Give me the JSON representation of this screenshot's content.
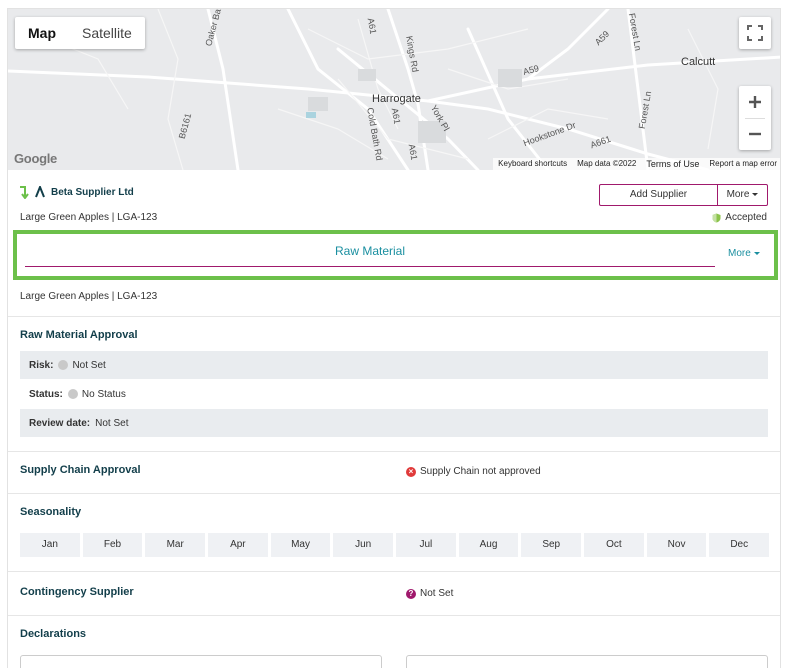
{
  "map": {
    "type_map": "Map",
    "type_satellite": "Satellite",
    "labels": {
      "harrogate": "Harrogate",
      "calcutt": "Calcutt",
      "a61_top": "A61",
      "a59": "A59",
      "a59b": "A59",
      "forest_ln": "Forest Ln",
      "oakdale": "Oaker Bar",
      "kings_rd": "Kings Rd",
      "b6161": "B6161",
      "cold_bath": "Cold Bath Rd",
      "york_pl": "York Pl",
      "a61_mid": "A61",
      "a61_low": "A61",
      "hookstone": "Hookstone Dr",
      "a661": "A661",
      "forest_ln2": "Forest Ln"
    },
    "google": "Google",
    "attribution": [
      "Keyboard shortcuts",
      "Map data ©2022",
      "Terms of Use",
      "Report a map error"
    ]
  },
  "supplier": {
    "name": "Beta Supplier Ltd",
    "add_label": "Add Supplier",
    "more_label": "More",
    "product_line": "Large Green Apples | LGA-123",
    "accepted_label": "Accepted"
  },
  "tabs": {
    "active_label": "Raw Material",
    "more_label": "More"
  },
  "product_line_2": "Large Green Apples | LGA-123",
  "raw_material_approval": {
    "title": "Raw Material Approval",
    "risk_key": "Risk:",
    "risk_value": "Not Set",
    "status_key": "Status:",
    "status_value": "No Status",
    "review_key": "Review date:",
    "review_value": "Not Set"
  },
  "supply_chain": {
    "title": "Supply Chain Approval",
    "status": "Supply Chain not approved"
  },
  "seasonality": {
    "title": "Seasonality",
    "months": [
      "Jan",
      "Feb",
      "Mar",
      "Apr",
      "May",
      "Jun",
      "Jul",
      "Aug",
      "Sep",
      "Oct",
      "Nov",
      "Dec"
    ]
  },
  "contingency": {
    "title": "Contingency Supplier",
    "status": "Not Set"
  },
  "declarations": {
    "title": "Declarations"
  },
  "colors": {
    "accent_teal": "#1a8fa0",
    "brand_magenta": "#a0196c",
    "highlight_green": "#6cc04a",
    "heading_navy": "#123e4a"
  }
}
